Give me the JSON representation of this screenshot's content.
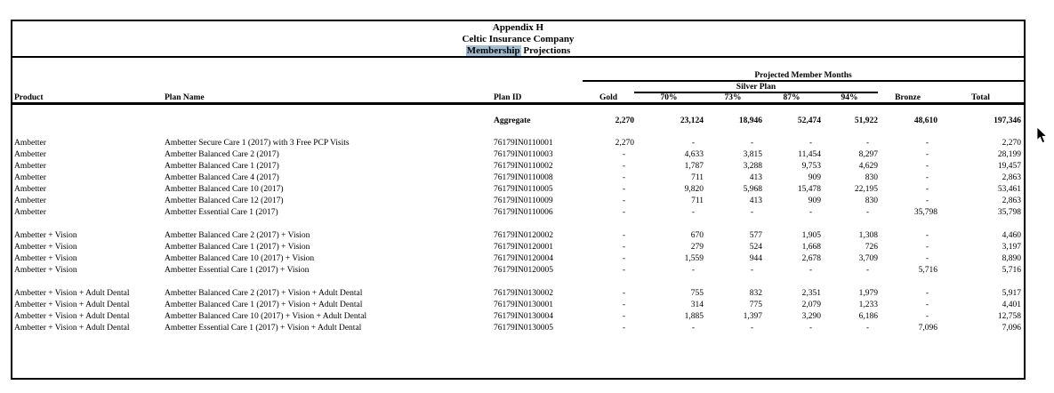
{
  "title": {
    "line1": "Appendix H",
    "line2": "Celtic Insurance Company",
    "line3_highlighted_word": "Membership",
    "line3_rest": " Projections"
  },
  "header": {
    "projected_label": "Projected Member Months",
    "silver_label": "Silver Plan"
  },
  "table": {
    "columns": [
      "Product",
      "Plan Name",
      "Plan ID",
      "Gold",
      "70%",
      "73%",
      "87%",
      "94%",
      "Bronze",
      "Total"
    ],
    "aggregate": {
      "label": "Aggregate",
      "values": [
        "2,270",
        "23,124",
        "18,946",
        "52,474",
        "51,922",
        "48,610",
        "197,346"
      ]
    },
    "groups": [
      {
        "rows": [
          {
            "product": "Ambetter",
            "plan": "Ambetter Secure Care 1 (2017) with 3 Free PCP Visits",
            "id": "76179IN0110001",
            "values": [
              "2,270",
              "-",
              "-",
              "-",
              "-",
              "-",
              "2,270"
            ]
          },
          {
            "product": "Ambetter",
            "plan": "Ambetter Balanced Care 2 (2017)",
            "id": "76179IN0110003",
            "values": [
              "-",
              "4,633",
              "3,815",
              "11,454",
              "8,297",
              "-",
              "28,199"
            ]
          },
          {
            "product": "Ambetter",
            "plan": "Ambetter Balanced Care 1 (2017)",
            "id": "76179IN0110002",
            "values": [
              "-",
              "1,787",
              "3,288",
              "9,753",
              "4,629",
              "-",
              "19,457"
            ]
          },
          {
            "product": "Ambetter",
            "plan": "Ambetter Balanced Care 4 (2017)",
            "id": "76179IN0110008",
            "values": [
              "-",
              "711",
              "413",
              "909",
              "830",
              "-",
              "2,863"
            ]
          },
          {
            "product": "Ambetter",
            "plan": "Ambetter Balanced Care 10 (2017)",
            "id": "76179IN0110005",
            "values": [
              "-",
              "9,820",
              "5,968",
              "15,478",
              "22,195",
              "-",
              "53,461"
            ]
          },
          {
            "product": "Ambetter",
            "plan": "Ambetter Balanced Care 12 (2017)",
            "id": "76179IN0110009",
            "values": [
              "-",
              "711",
              "413",
              "909",
              "830",
              "-",
              "2,863"
            ]
          },
          {
            "product": "Ambetter",
            "plan": "Ambetter Essential Care 1 (2017)",
            "id": "76179IN0110006",
            "values": [
              "-",
              "-",
              "-",
              "-",
              "-",
              "35,798",
              "35,798"
            ]
          }
        ]
      },
      {
        "rows": [
          {
            "product": "Ambetter + Vision",
            "plan": "Ambetter Balanced Care 2 (2017) + Vision",
            "id": "76179IN0120002",
            "values": [
              "-",
              "670",
              "577",
              "1,905",
              "1,308",
              "-",
              "4,460"
            ]
          },
          {
            "product": "Ambetter + Vision",
            "plan": "Ambetter Balanced Care 1 (2017) + Vision",
            "id": "76179IN0120001",
            "values": [
              "-",
              "279",
              "524",
              "1,668",
              "726",
              "-",
              "3,197"
            ]
          },
          {
            "product": "Ambetter + Vision",
            "plan": "Ambetter Balanced Care 10 (2017) + Vision",
            "id": "76179IN0120004",
            "values": [
              "-",
              "1,559",
              "944",
              "2,678",
              "3,709",
              "-",
              "8,890"
            ]
          },
          {
            "product": "Ambetter + Vision",
            "plan": "Ambetter Essential Care 1 (2017) + Vision",
            "id": "76179IN0120005",
            "values": [
              "-",
              "-",
              "-",
              "-",
              "-",
              "5,716",
              "5,716"
            ]
          }
        ]
      },
      {
        "rows": [
          {
            "product": "Ambetter + Vision + Adult Dental",
            "plan": "Ambetter Balanced Care 2 (2017) + Vision + Adult Dental",
            "id": "76179IN0130002",
            "values": [
              "-",
              "755",
              "832",
              "2,351",
              "1,979",
              "-",
              "5,917"
            ]
          },
          {
            "product": "Ambetter + Vision + Adult Dental",
            "plan": "Ambetter Balanced Care 1 (2017) + Vision + Adult Dental",
            "id": "76179IN0130001",
            "values": [
              "-",
              "314",
              "775",
              "2,079",
              "1,233",
              "-",
              "4,401"
            ]
          },
          {
            "product": "Ambetter + Vision + Adult Dental",
            "plan": "Ambetter Balanced Care 10 (2017) + Vision + Adult Dental",
            "id": "76179IN0130004",
            "values": [
              "-",
              "1,885",
              "1,397",
              "3,290",
              "6,186",
              "-",
              "12,758"
            ]
          },
          {
            "product": "Ambetter + Vision + Adult Dental",
            "plan": "Ambetter Essential Care 1 (2017) + Vision + Adult Dental",
            "id": "76179IN0130005",
            "values": [
              "-",
              "-",
              "-",
              "-",
              "-",
              "7,096",
              "7,096"
            ]
          }
        ]
      }
    ]
  },
  "colors": {
    "highlight": "#a3bed4",
    "border": "#000000"
  }
}
